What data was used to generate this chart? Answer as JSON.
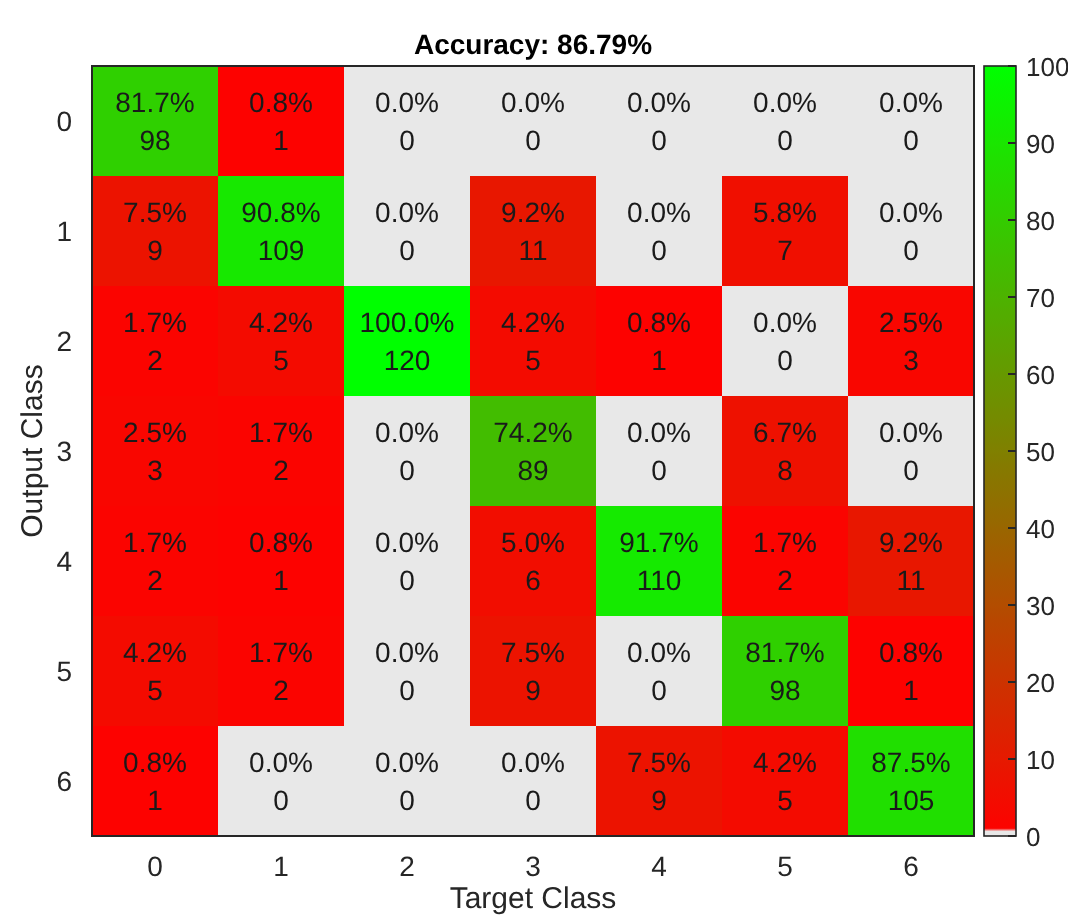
{
  "chart_data": {
    "type": "heatmap",
    "title": "Accuracy: 86.79%",
    "xlabel": "Target Class",
    "ylabel": "Output Class",
    "categories": [
      "0",
      "1",
      "2",
      "3",
      "4",
      "5",
      "6"
    ],
    "y_categories": [
      "0",
      "1",
      "2",
      "3",
      "4",
      "5",
      "6"
    ],
    "cells": [
      [
        81.7,
        0.8,
        0.0,
        0.0,
        0.0,
        0.0,
        0.0
      ],
      [
        7.5,
        90.8,
        0.0,
        9.2,
        0.0,
        5.8,
        0.0
      ],
      [
        1.7,
        4.2,
        100.0,
        4.2,
        0.8,
        0.0,
        2.5
      ],
      [
        2.5,
        1.7,
        0.0,
        74.2,
        0.0,
        6.7,
        0.0
      ],
      [
        1.7,
        0.8,
        0.0,
        5.0,
        91.7,
        1.7,
        9.2
      ],
      [
        4.2,
        1.7,
        0.0,
        7.5,
        0.0,
        81.7,
        0.8
      ],
      [
        0.8,
        0.0,
        0.0,
        0.0,
        7.5,
        4.2,
        87.5
      ]
    ],
    "cell_labels": [
      [
        "81.7%\n98",
        "0.8%\n1",
        "0.0%\n0",
        "0.0%\n0",
        "0.0%\n0",
        "0.0%\n0",
        "0.0%\n0"
      ],
      [
        "7.5%\n9",
        "90.8%\n109",
        "0.0%\n0",
        "9.2%\n11",
        "0.0%\n0",
        "5.8%\n7",
        "0.0%\n0"
      ],
      [
        "1.7%\n2",
        "4.2%\n5",
        "100.0%\n120",
        "4.2%\n5",
        "0.8%\n1",
        "0.0%\n0",
        "2.5%\n3"
      ],
      [
        "2.5%\n3",
        "1.7%\n2",
        "0.0%\n0",
        "74.2%\n89",
        "0.0%\n0",
        "6.7%\n8",
        "0.0%\n0"
      ],
      [
        "1.7%\n2",
        "0.8%\n1",
        "0.0%\n0",
        "5.0%\n6",
        "91.7%\n110",
        "1.7%\n2",
        "9.2%\n11"
      ],
      [
        "4.2%\n5",
        "1.7%\n2",
        "0.0%\n0",
        "7.5%\n9",
        "0.0%\n0",
        "81.7%\n98",
        "0.8%\n1"
      ],
      [
        "0.8%\n1",
        "0.0%\n0",
        "0.0%\n0",
        "0.0%\n0",
        "7.5%\n9",
        "4.2%\n5",
        "87.5%\n105"
      ]
    ],
    "clim": [
      0,
      100
    ],
    "cticks": [
      0,
      10,
      20,
      30,
      40,
      50,
      60,
      70,
      80,
      90,
      100
    ]
  }
}
